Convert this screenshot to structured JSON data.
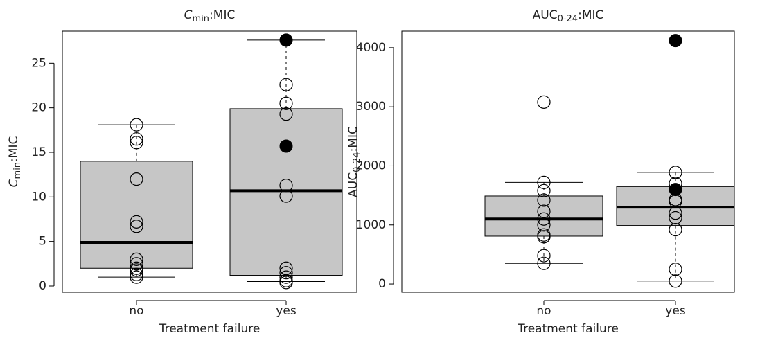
{
  "chart_data": [
    {
      "type": "box",
      "title": {
        "main": "C",
        "sub": "min",
        "rest": ":MIC"
      },
      "ylabel": {
        "main": "C",
        "sub": "min",
        "rest": ":MIC"
      },
      "italic_main": true,
      "xlabel": "Treatment failure",
      "categories": [
        "no",
        "yes"
      ],
      "ylim": [
        -0.7,
        28.6
      ],
      "yticks": [
        0,
        5,
        10,
        15,
        20,
        25
      ],
      "box_color": "#c6c6c6",
      "boxes": [
        {
          "whisker_low": 1.0,
          "q1": 2.0,
          "median": 4.9,
          "q3": 14.0,
          "whisker_high": 18.1,
          "points": [
            18.1,
            16.5,
            16.1,
            12.0,
            7.2,
            6.7,
            3.0,
            2.5,
            2.0,
            1.8,
            1.3,
            1.0
          ],
          "filled_points": []
        },
        {
          "whisker_low": 0.5,
          "q1": 1.2,
          "median": 10.7,
          "q3": 19.9,
          "whisker_high": 27.6,
          "points": [
            22.6,
            20.5,
            19.3,
            11.3,
            10.1,
            2.0,
            1.5,
            1.0,
            0.6,
            0.4
          ],
          "filled_points": [
            27.6,
            15.7
          ]
        }
      ]
    },
    {
      "type": "box",
      "title": {
        "main": "AUC",
        "sub": "0-24",
        "rest": ":MIC"
      },
      "ylabel": {
        "main": "AUC",
        "sub": "0-24",
        "rest": ":MIC"
      },
      "italic_main": false,
      "xlabel": "Treatment failure",
      "categories": [
        "no",
        "yes"
      ],
      "ylim": [
        -140,
        4280
      ],
      "yticks": [
        0,
        1000,
        2000,
        3000,
        4000
      ],
      "box_color": "#c6c6c6",
      "boxes": [
        {
          "whisker_low": 350,
          "q1": 810,
          "median": 1100,
          "q3": 1490,
          "whisker_high": 1720,
          "points": [
            3080,
            1720,
            1580,
            1420,
            1230,
            1100,
            1000,
            830,
            800,
            480,
            350
          ],
          "filled_points": []
        },
        {
          "whisker_low": 50,
          "q1": 990,
          "median": 1300,
          "q3": 1650,
          "whisker_high": 1890,
          "points": [
            1890,
            1700,
            1430,
            1400,
            1200,
            1120,
            920,
            250,
            50
          ],
          "filled_points": [
            4120,
            1600
          ]
        }
      ]
    }
  ]
}
